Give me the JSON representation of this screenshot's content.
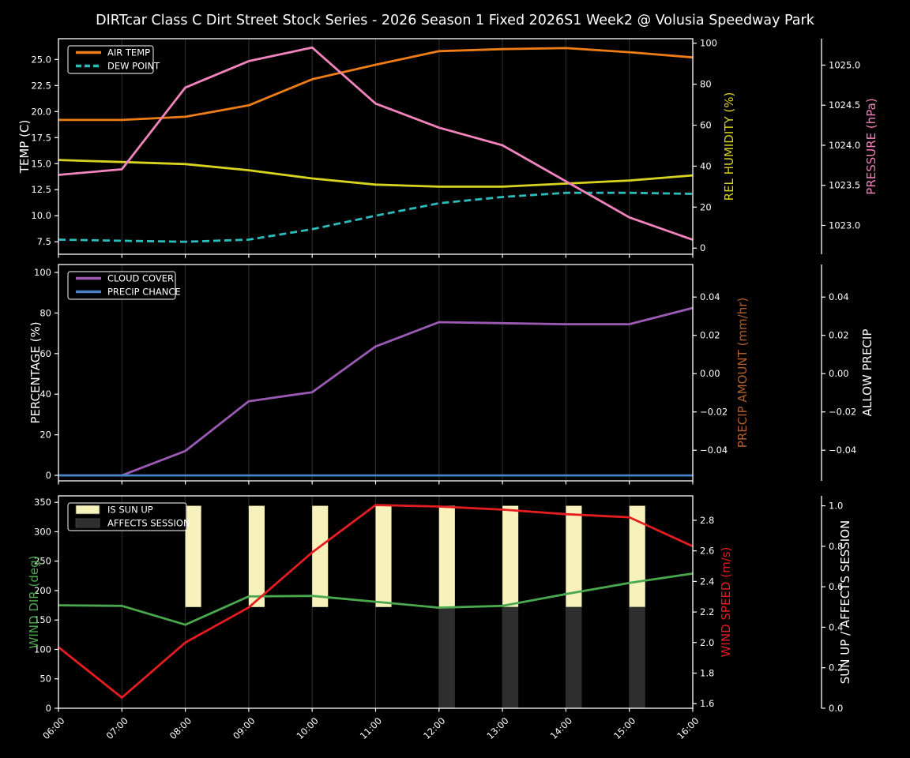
{
  "title": "DIRTcar Class C Dirt Street Stock Series - 2026 Season 1 Fixed 2026S1 Week2 @ Volusia Speedway Park",
  "colors": {
    "background": "#000000",
    "text": "#ffffff",
    "grid": "#2d2d2d",
    "spine": "#ffffff",
    "legend_border": "#cfcfcf",
    "air_temp": "#ee7d18",
    "dew_point": "#2cbcbc",
    "rel_humidity": "#d8d41f",
    "pressure": "#f283bd",
    "cloud_cover": "#9b5bb5",
    "precip_chance": "#4682c4",
    "precip_amount_label": "#b05f2b",
    "wind_dir": "#4aa84e",
    "wind_speed": "#e51c20",
    "sun_up": "#f7f2bb",
    "affects_session": "#2e2e2e"
  },
  "x_hours": [
    6,
    7,
    8,
    9,
    10,
    11,
    12,
    13,
    14,
    15,
    16
  ],
  "x_labels": [
    "06:00",
    "07:00",
    "08:00",
    "09:00",
    "10:00",
    "11:00",
    "12:00",
    "13:00",
    "14:00",
    "15:00",
    "16:00"
  ],
  "chart_data": [
    {
      "type": "line",
      "name": "temperature-humidity-pressure",
      "show_x_labels": false,
      "axes": {
        "left": {
          "label": "TEMP (C)",
          "color": "#ffffff",
          "range": [
            6.3,
            27.0
          ],
          "ticks": [
            7.5,
            10,
            12.5,
            15,
            17.5,
            20,
            22.5,
            25
          ],
          "tick_labels": [
            "7.5",
            "10.0",
            "12.5",
            "15.0",
            "17.5",
            "20.0",
            "22.5",
            "25.0"
          ]
        },
        "right1": {
          "label": "REL HUMIDITY (%)",
          "color": "#d8d41f",
          "range": [
            -3,
            102.2
          ],
          "ticks": [
            0,
            20,
            40,
            60,
            80,
            100
          ],
          "tick_labels": [
            "0",
            "20",
            "40",
            "60",
            "80",
            "100"
          ]
        },
        "right2": {
          "label": "PRESSURE (hPa)",
          "color": "#f283bd",
          "range": [
            1022.64,
            1025.33
          ],
          "ticks": [
            1023,
            1023.5,
            1024,
            1024.5,
            1025
          ],
          "tick_labels": [
            "1023.0",
            "1023.5",
            "1024.0",
            "1024.5",
            "1025.0"
          ]
        }
      },
      "series": [
        {
          "name": "AIR TEMP",
          "axis": "left",
          "color": "#ee7d18",
          "dash": false,
          "values": [
            19.2,
            19.2,
            19.5,
            20.6,
            23.1,
            24.5,
            25.8,
            26.0,
            26.1,
            25.7,
            25.2
          ]
        },
        {
          "name": "DEW POINT",
          "axis": "left",
          "color": "#2cbcbc",
          "dash": true,
          "values": [
            7.7,
            7.6,
            7.5,
            7.7,
            8.7,
            10.0,
            11.2,
            11.8,
            12.2,
            12.2,
            12.1
          ]
        },
        {
          "name": "REL HUMIDITY",
          "axis": "right1",
          "color": "#d8d41f",
          "dash": false,
          "values": [
            43,
            42,
            41,
            38,
            34,
            31,
            30,
            30,
            31.5,
            33,
            35.5
          ]
        },
        {
          "name": "PRESSURE",
          "axis": "right2",
          "color": "#f283bd",
          "dash": false,
          "values": [
            1023.63,
            1023.7,
            1024.72,
            1025.05,
            1025.22,
            1024.52,
            1024.22,
            1024.0,
            1023.55,
            1023.1,
            1022.82
          ]
        }
      ],
      "legend": [
        {
          "label": "AIR TEMP",
          "swatch": "line",
          "color": "#ee7d18",
          "dash": false
        },
        {
          "label": "DEW POINT",
          "swatch": "line",
          "color": "#2cbcbc",
          "dash": true
        }
      ]
    },
    {
      "type": "line",
      "name": "cloud-precip",
      "show_x_labels": false,
      "axes": {
        "left": {
          "label": "PERCENTAGE (%)",
          "color": "#ffffff",
          "range": [
            -2.7,
            103.9
          ],
          "ticks": [
            0,
            20,
            40,
            60,
            80,
            100
          ],
          "tick_labels": [
            "0",
            "20",
            "40",
            "60",
            "80",
            "100"
          ]
        },
        "right1": {
          "label": "PRECIP AMOUNT (mm/hr)",
          "color": "#b05f2b",
          "range": [
            -0.056,
            0.057
          ],
          "ticks": [
            -0.04,
            -0.02,
            0,
            0.02,
            0.04
          ],
          "tick_labels": [
            "−0.04",
            "−0.02",
            "0.00",
            "0.02",
            "0.04"
          ]
        },
        "right2": {
          "label": "ALLOW PRECIP",
          "color": "#ffffff",
          "range": [
            -0.056,
            0.057
          ],
          "ticks": [
            -0.04,
            -0.02,
            0,
            0.02,
            0.04
          ],
          "tick_labels": [
            "−0.04",
            "−0.02",
            "0.00",
            "0.02",
            "0.04"
          ]
        }
      },
      "series": [
        {
          "name": "CLOUD COVER",
          "axis": "left",
          "color": "#9b5bb5",
          "dash": false,
          "values": [
            0,
            0,
            12,
            36.5,
            41,
            63.5,
            75.5,
            75,
            74.5,
            74.5,
            82.5
          ]
        },
        {
          "name": "PRECIP CHANCE",
          "axis": "left",
          "color": "#4682c4",
          "dash": false,
          "values": [
            0,
            0,
            0,
            0,
            0,
            0,
            0,
            0,
            0,
            0,
            0
          ]
        }
      ],
      "legend": [
        {
          "label": "CLOUD COVER",
          "swatch": "line",
          "color": "#9b5bb5",
          "dash": false
        },
        {
          "label": "PRECIP CHANCE",
          "swatch": "line",
          "color": "#4682c4",
          "dash": false
        }
      ]
    },
    {
      "type": "line",
      "name": "wind-sun",
      "show_x_labels": true,
      "axes": {
        "left": {
          "label": "WIND DIR (deg)",
          "color": "#4aa84e",
          "range": [
            0,
            361
          ],
          "ticks": [
            0,
            50,
            100,
            150,
            200,
            250,
            300,
            350
          ],
          "tick_labels": [
            "0",
            "50",
            "100",
            "150",
            "200",
            "250",
            "300",
            "350"
          ]
        },
        "right1": {
          "label": "WIND SPEED (m/s)",
          "color": "#e51c20",
          "range": [
            1.57,
            2.96
          ],
          "ticks": [
            1.6,
            1.8,
            2.0,
            2.2,
            2.4,
            2.6,
            2.8
          ],
          "tick_labels": [
            "1.6",
            "1.8",
            "2.0",
            "2.2",
            "2.4",
            "2.6",
            "2.8"
          ]
        },
        "right2": {
          "label": "SUN UP / AFFECTS SESSION",
          "color": "#ffffff",
          "range": [
            0,
            1.049
          ],
          "ticks": [
            0,
            0.2,
            0.4,
            0.6,
            0.8,
            1.0
          ],
          "tick_labels": [
            "0.0",
            "0.2",
            "0.4",
            "0.6",
            "0.8",
            "1.0"
          ]
        }
      },
      "bars": [
        {
          "name": "IS SUN UP",
          "axis": "right2",
          "color": "#f7f2bb",
          "hours": [
            8,
            9,
            10,
            11,
            12,
            13,
            14,
            15
          ],
          "from": 0.5,
          "to": 1.0,
          "width_hours": 0.25
        },
        {
          "name": "AFFECTS SESSION",
          "axis": "right2",
          "color": "#2e2e2e",
          "hours": [
            12,
            13,
            14,
            15
          ],
          "from": 0.0,
          "to": 0.5,
          "width_hours": 0.25
        }
      ],
      "series": [
        {
          "name": "WIND DIR",
          "axis": "left",
          "color": "#4aa84e",
          "dash": false,
          "values": [
            175,
            174,
            142,
            190,
            191,
            181,
            171,
            174,
            194,
            213,
            229
          ]
        },
        {
          "name": "WIND SPEED",
          "axis": "right1",
          "color": "#e51c20",
          "dash": false,
          "values": [
            1.97,
            1.64,
            2.0,
            2.23,
            2.59,
            2.9,
            2.89,
            2.87,
            2.84,
            2.82,
            2.63
          ]
        }
      ],
      "legend": [
        {
          "label": "IS SUN UP",
          "swatch": "patch",
          "color": "#f7f2bb"
        },
        {
          "label": "AFFECTS SESSION",
          "swatch": "patch",
          "color": "#2e2e2e"
        }
      ]
    }
  ]
}
